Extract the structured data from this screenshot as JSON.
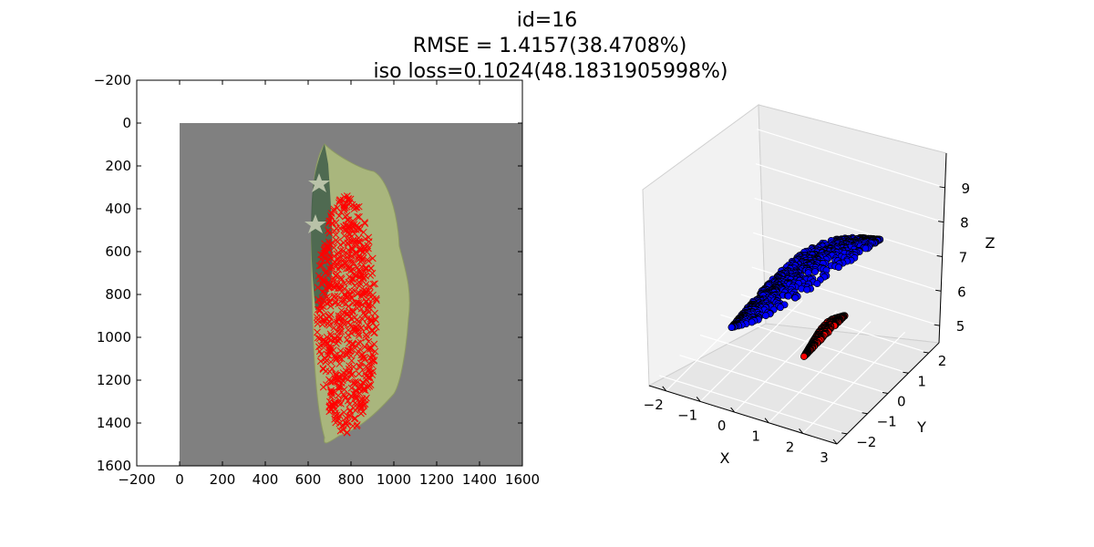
{
  "title": {
    "line1": "id=16",
    "line2": "RMSE = 1.4157(38.4708%)",
    "line3": "iso loss=0.1024(48.1831905998%)"
  },
  "chart_data": [
    {
      "type": "scatter",
      "panel": "image-with-keypoints",
      "x_ticks": [
        "−200",
        "0",
        "200",
        "400",
        "600",
        "800",
        "1000",
        "1200",
        "1400",
        "1600"
      ],
      "y_ticks": [
        "−200",
        "0",
        "200",
        "400",
        "600",
        "800",
        "1000",
        "1200",
        "1400",
        "1600"
      ],
      "xlim": [
        -200,
        1600
      ],
      "ylim": [
        1600,
        -200
      ],
      "image_extent": [
        0,
        1600,
        0,
        1600
      ],
      "image_background_color": "#808080",
      "object_color": "#a8b47c",
      "marker": "x",
      "marker_color": "#ff0000",
      "keypoint_region": {
        "x_range": [
          640,
          920
        ],
        "y_range": [
          340,
          1450
        ]
      }
    },
    {
      "type": "scatter",
      "panel": "3d-point-clouds",
      "x_ticks": [
        "−2",
        "−1",
        "0",
        "1",
        "2",
        "3"
      ],
      "y_ticks": [
        "−2",
        "−1",
        "0",
        "1",
        "2"
      ],
      "z_ticks": [
        "5",
        "6",
        "7",
        "8",
        "9"
      ],
      "xlabel": "X",
      "ylabel": "Y",
      "zlabel": "Z",
      "xlim": [
        -2.5,
        3
      ],
      "ylim": [
        -2.5,
        2.5
      ],
      "zlim": [
        4.5,
        10
      ],
      "series": [
        {
          "color": "#0000ff",
          "x_range": [
            -1.6,
            2.6
          ],
          "y_range": [
            -1.2,
            1.2
          ],
          "z_range": [
            5.0,
            9.8
          ]
        },
        {
          "color": "#ff0000",
          "x_range": [
            0.6,
            1.6
          ],
          "y_range": [
            -0.8,
            0.8
          ],
          "z_range": [
            4.9,
            6.6
          ]
        }
      ]
    }
  ]
}
